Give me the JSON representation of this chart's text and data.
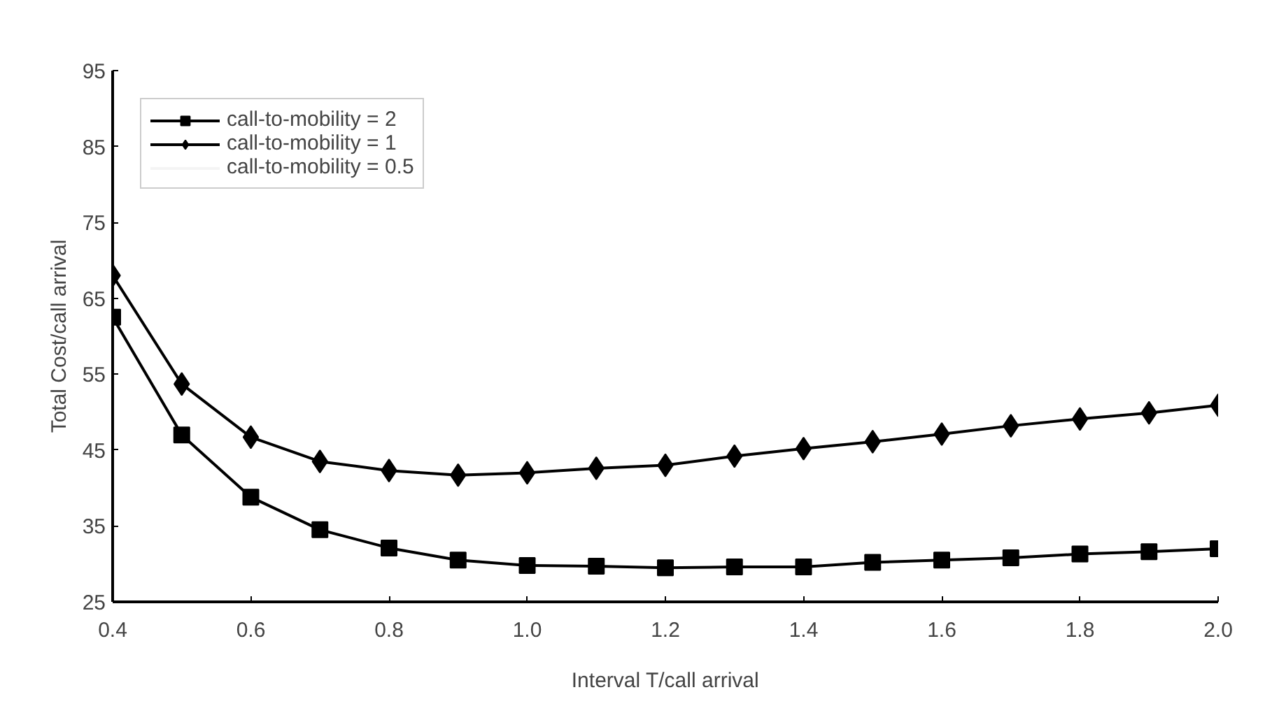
{
  "chart_data": {
    "type": "line",
    "xlabel": "Interval T/call arrival",
    "ylabel": "Total Cost/call arrival",
    "x": [
      0.4,
      0.5,
      0.6,
      0.7,
      0.8,
      0.9,
      1.0,
      1.1,
      1.2,
      1.3,
      1.4,
      1.5,
      1.6,
      1.7,
      1.8,
      1.9,
      2.0
    ],
    "series": [
      {
        "name": "call-to-mobility = 2",
        "color": "#000000",
        "marker": "square",
        "values": [
          62.5,
          47.0,
          38.8,
          34.5,
          32.1,
          30.5,
          29.8,
          29.7,
          29.5,
          29.6,
          29.6,
          30.2,
          30.5,
          30.8,
          31.3,
          31.6,
          32.0
        ]
      },
      {
        "name": "call-to-mobility = 1",
        "color": "#000000",
        "marker": "diamond",
        "values": [
          68.0,
          53.7,
          46.7,
          43.5,
          42.3,
          41.7,
          42.0,
          42.6,
          43.0,
          44.2,
          45.2,
          46.1,
          47.1,
          48.2,
          49.1,
          49.9,
          50.9
        ]
      },
      {
        "name": "call-to-mobility = 0.5",
        "color": "#f4f4f4",
        "marker": "none",
        "values": [
          null,
          null,
          null,
          null,
          null,
          null,
          null,
          null,
          null,
          null,
          null,
          null,
          null,
          null,
          null,
          null,
          null
        ]
      }
    ],
    "xlim": [
      0.4,
      2.0
    ],
    "xticks": [
      {
        "value": 0.4,
        "label": "0.4"
      },
      {
        "value": 0.6,
        "label": "0.6"
      },
      {
        "value": 0.8,
        "label": "0.8"
      },
      {
        "value": 1.0,
        "label": "1.0"
      },
      {
        "value": 1.2,
        "label": "1.2"
      },
      {
        "value": 1.4,
        "label": "1.4"
      },
      {
        "value": 1.6,
        "label": "1.6"
      },
      {
        "value": 1.8,
        "label": "1.8"
      },
      {
        "value": 2.0,
        "label": "2.0"
      }
    ],
    "ylim": [
      25,
      95
    ],
    "yticks": [
      25,
      35,
      45,
      55,
      65,
      75,
      85,
      95
    ],
    "grid": false,
    "legend": "top left",
    "line_style": "solid"
  }
}
